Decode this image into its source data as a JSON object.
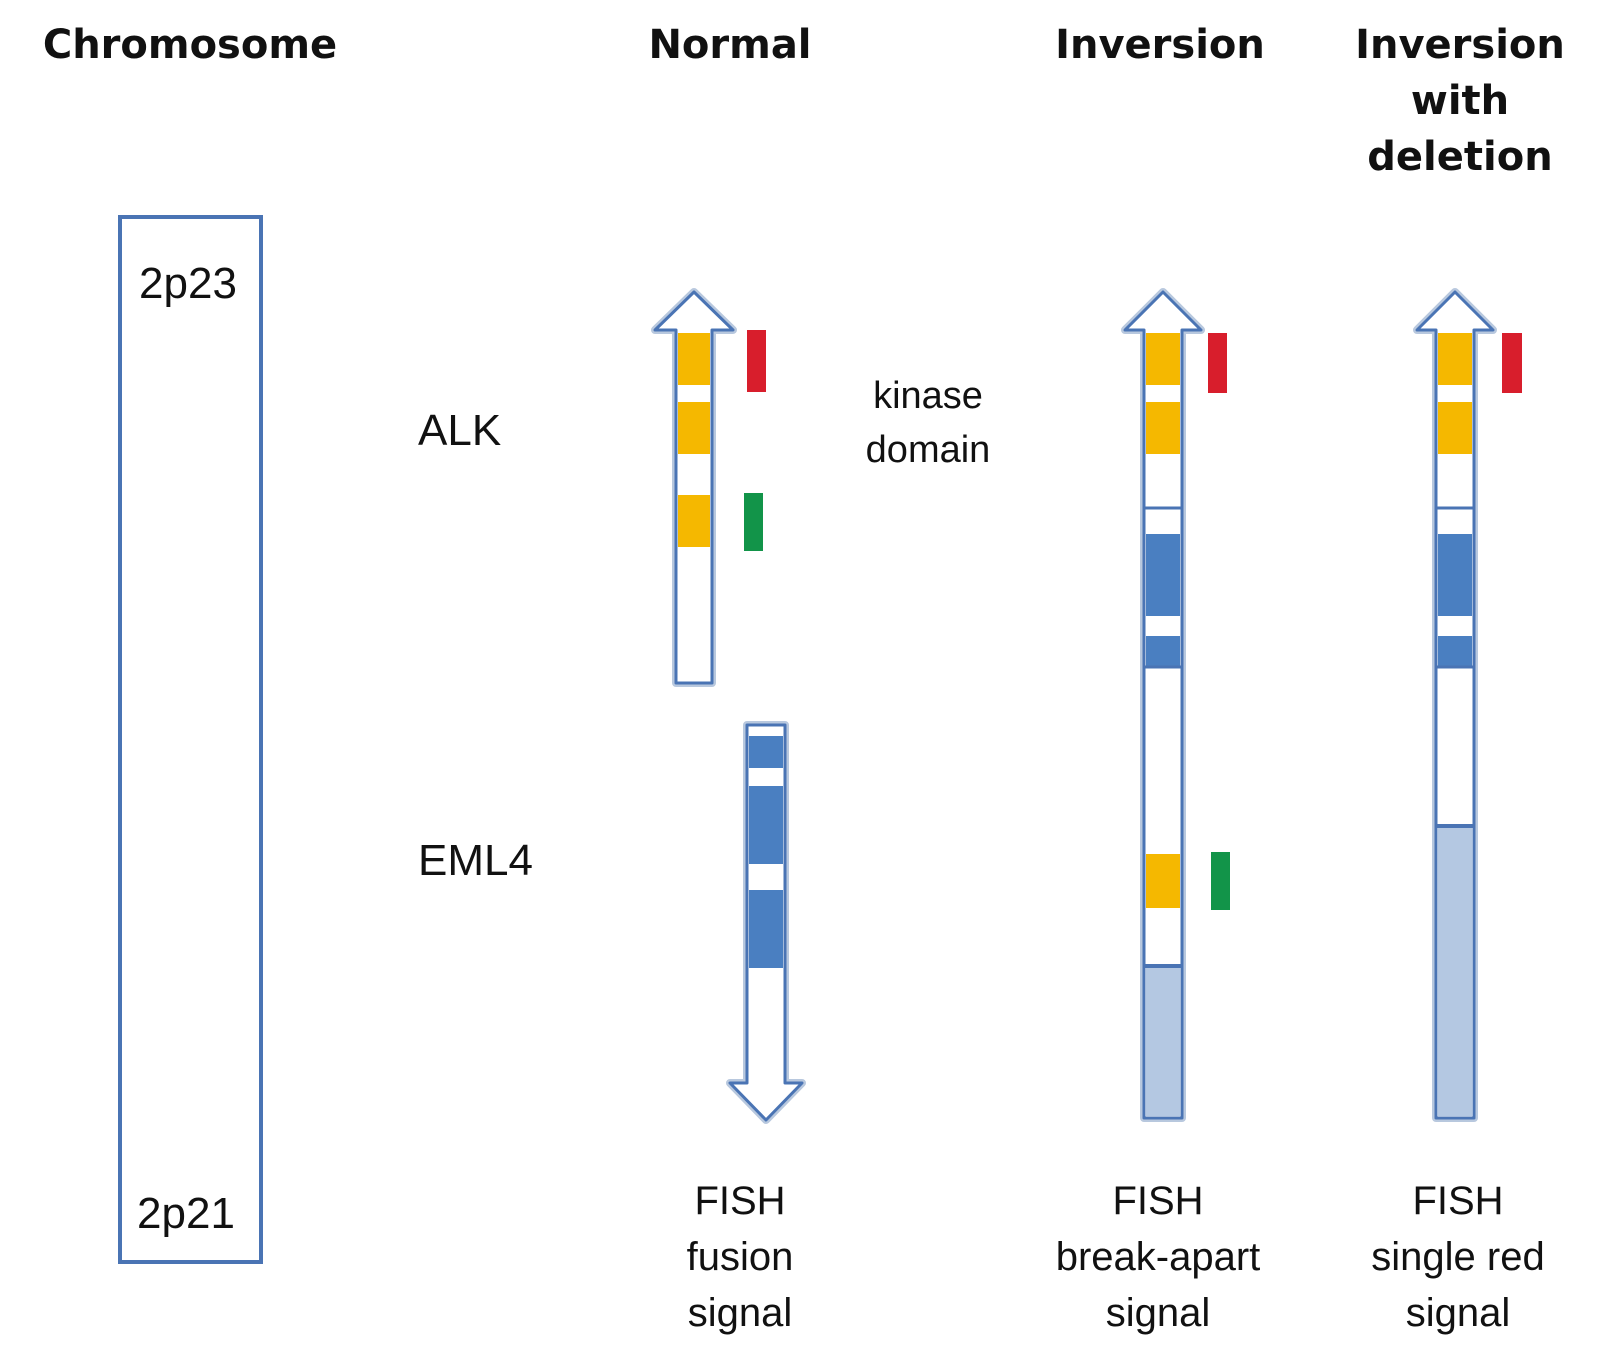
{
  "headers": {
    "chromosome": "Chromosome",
    "normal": "Normal",
    "inversion": "Inversion",
    "inversion_deletion": [
      "Inversion",
      "with",
      "deletion"
    ]
  },
  "bands": {
    "top": "2p23",
    "bottom": "2p21"
  },
  "genes": {
    "alk": "ALK",
    "eml4": "EML4"
  },
  "annotation": [
    "kinase",
    "domain"
  ],
  "captions": {
    "normal": [
      "FISH",
      "fusion",
      "signal"
    ],
    "inversion": [
      "FISH",
      "break-apart",
      "signal"
    ],
    "inversion_deletion": [
      "FISH",
      "single red",
      "signal"
    ]
  },
  "colors": {
    "outline": "#4a74b4",
    "exon_alk": "#f5b800",
    "exon_eml4": "#4a7fc1",
    "eml4_light": "#b4c8e2",
    "probe_red": "#d81e2c",
    "probe_green": "#129449"
  }
}
